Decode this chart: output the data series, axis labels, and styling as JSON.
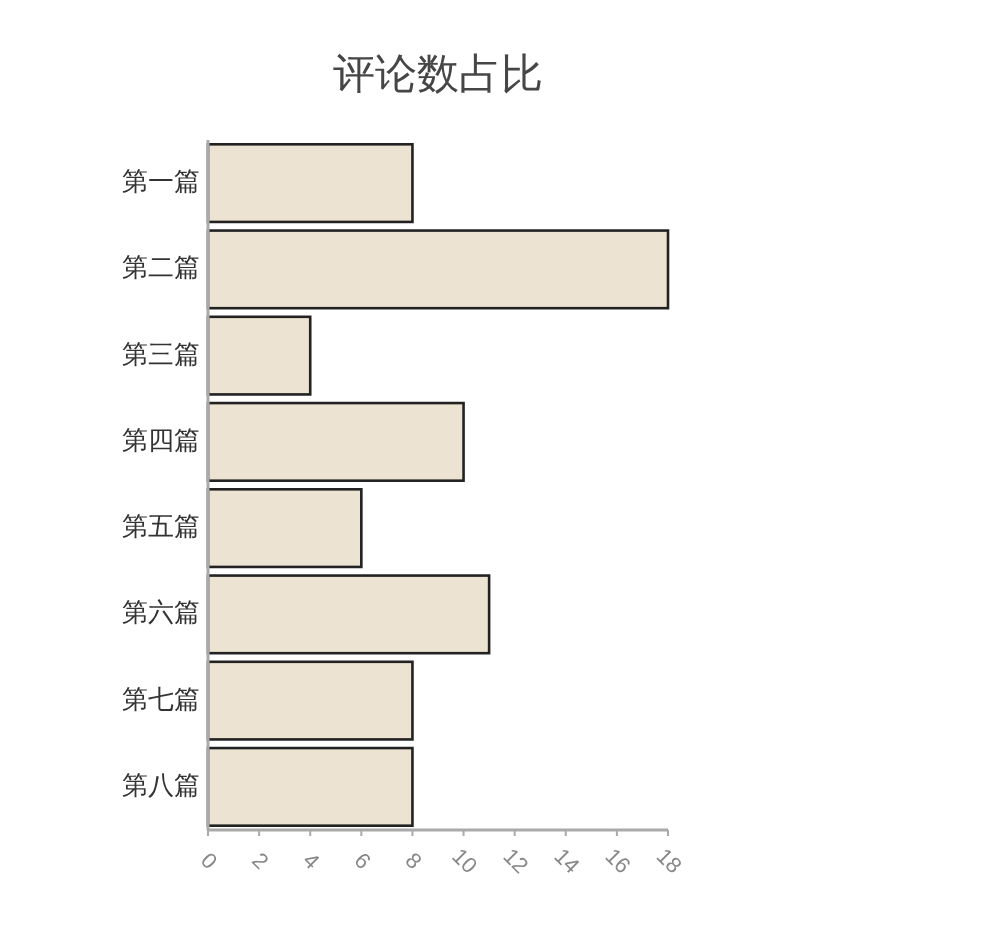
{
  "chart_data": {
    "type": "bar",
    "orientation": "horizontal",
    "title": "评论数占比",
    "categories": [
      "第一篇",
      "第二篇",
      "第三篇",
      "第四篇",
      "第五篇",
      "第六篇",
      "第七篇",
      "第八篇"
    ],
    "values": [
      8,
      18,
      4,
      10,
      6,
      11,
      8,
      8
    ],
    "color": "#ece3d3",
    "xlim": [
      0,
      18
    ],
    "xticks": [
      0,
      2,
      4,
      6,
      8,
      10,
      12,
      14,
      16,
      18
    ]
  }
}
